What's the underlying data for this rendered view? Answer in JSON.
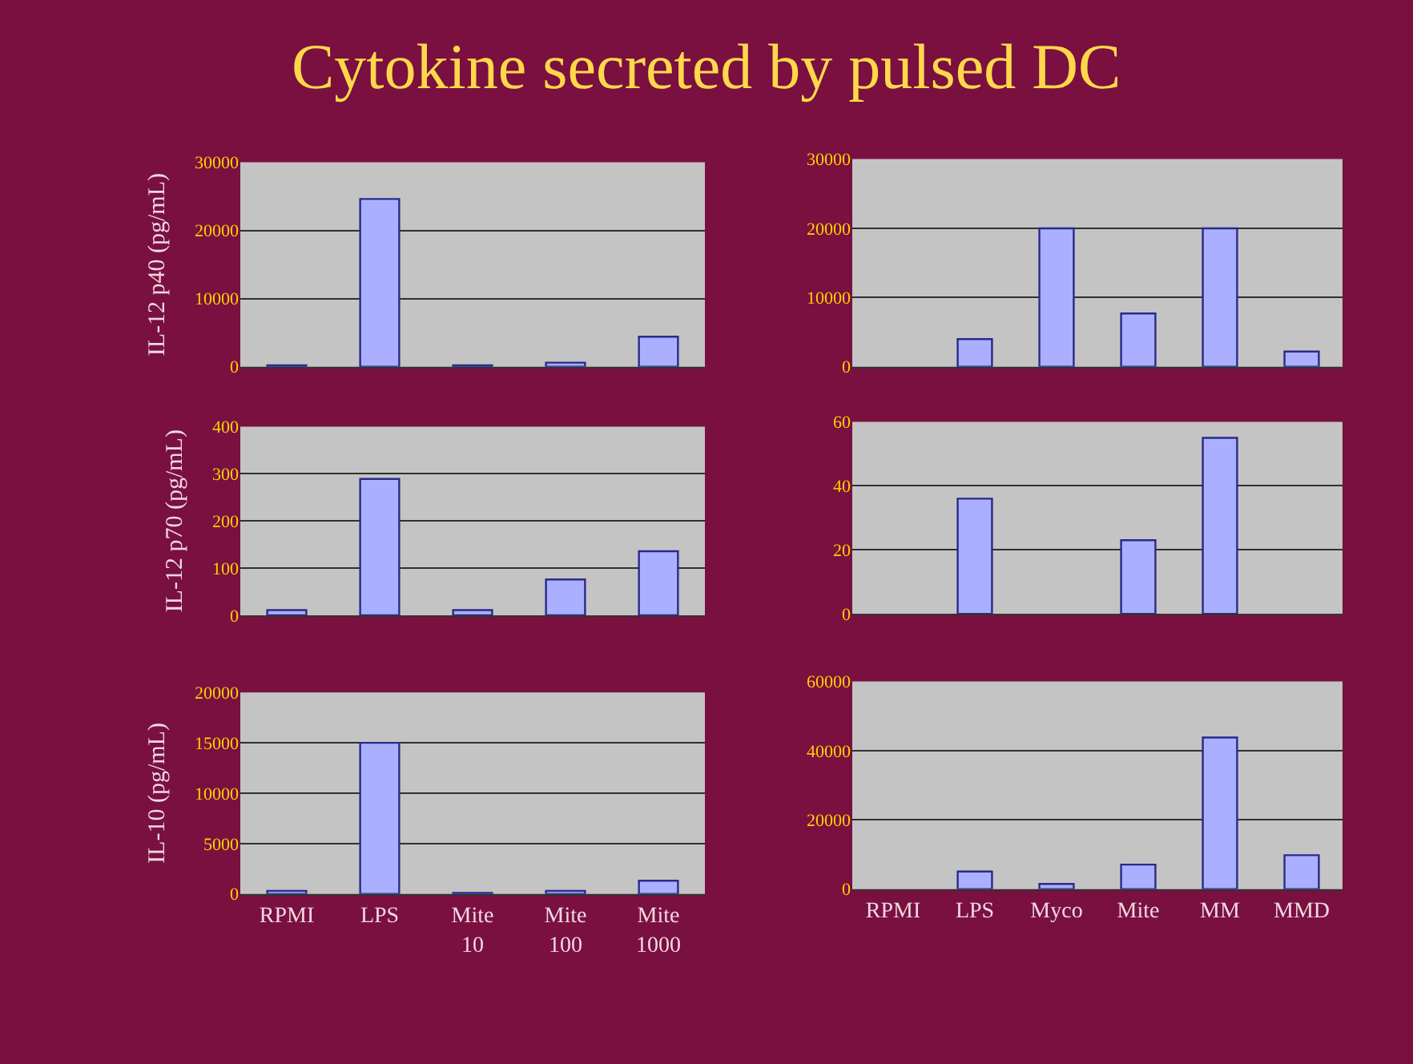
{
  "chart_data": [
    {
      "type": "bar",
      "title": "Cytokine secreted by pulsed DC",
      "ylabel": "IL-12 p40 (pg/mL)",
      "categories": [
        null,
        null,
        null,
        null,
        null
      ],
      "values": [
        200,
        24600,
        200,
        600,
        4400
      ],
      "color": "#aab0ff",
      "ylim": [
        0,
        30000
      ],
      "yticks": [
        0,
        10000,
        20000,
        30000
      ],
      "grid": "y"
    },
    {
      "type": "bar",
      "categories": [
        null,
        null,
        null,
        null,
        null,
        null
      ],
      "values": [
        0,
        4000,
        20000,
        7700,
        20000,
        2200
      ],
      "color": "#aab0ff",
      "ylim": [
        0,
        30000
      ],
      "yticks": [
        0,
        10000,
        20000,
        30000
      ],
      "grid": "y"
    },
    {
      "type": "bar",
      "ylabel": "IL-12 p70 (pg/mL)",
      "categories": [
        null,
        null,
        null,
        null,
        null
      ],
      "values": [
        11,
        289,
        11,
        76,
        136
      ],
      "color": "#aab0ff",
      "ylim": [
        0,
        400
      ],
      "yticks": [
        0,
        100,
        200,
        300,
        400
      ],
      "grid": "y"
    },
    {
      "type": "bar",
      "categories": [
        null,
        null,
        null,
        null,
        null,
        null
      ],
      "values": [
        0,
        36,
        0,
        23,
        55,
        0
      ],
      "color": "#aab0ff",
      "ylim": [
        0,
        60
      ],
      "yticks": [
        0,
        20,
        40,
        60
      ],
      "grid": "y"
    },
    {
      "type": "bar",
      "ylabel": "IL-10 (pg/mL)",
      "categories": [
        "RPMI",
        "LPS",
        "Mite\n10",
        "Mite\n100",
        "Mite\n1000"
      ],
      "values": [
        300,
        15000,
        100,
        300,
        1300
      ],
      "color": "#aab0ff",
      "ylim": [
        0,
        20000
      ],
      "yticks": [
        0,
        5000,
        10000,
        15000,
        20000
      ],
      "grid": "y"
    },
    {
      "type": "bar",
      "categories": [
        "RPMI",
        "LPS",
        "Myco",
        "Mite",
        "MM",
        "MMD"
      ],
      "values": [
        0,
        5100,
        1500,
        7100,
        43800,
        9800
      ],
      "color": "#aab0ff",
      "ylim": [
        0,
        60000
      ],
      "yticks": [
        0,
        20000,
        40000,
        60000
      ],
      "grid": "y"
    }
  ]
}
